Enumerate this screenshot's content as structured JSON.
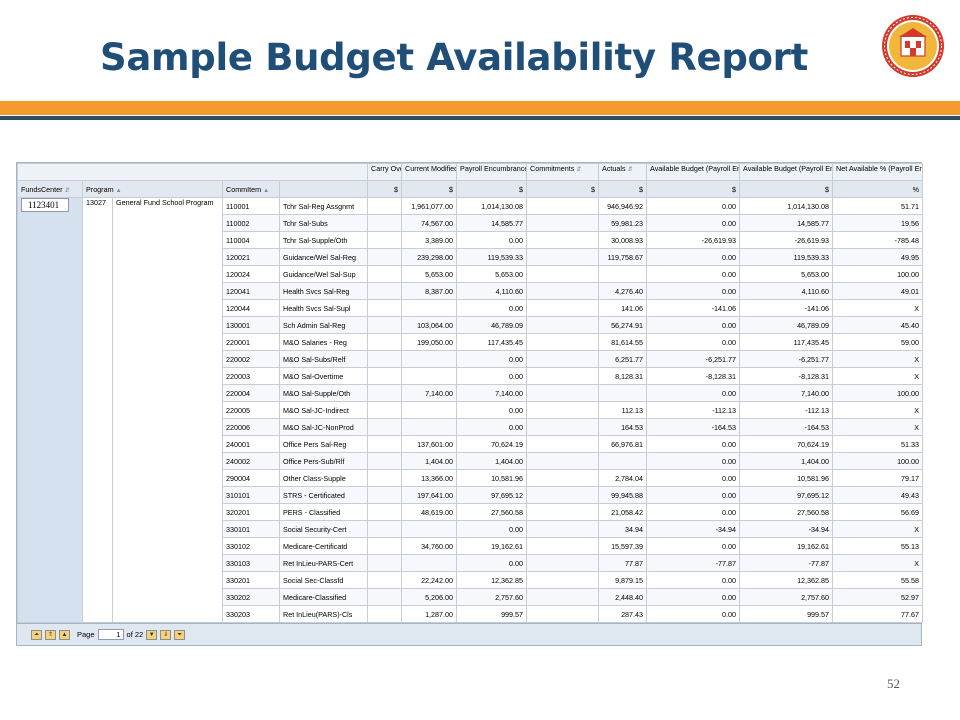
{
  "slide": {
    "title": "Sample Budget Availability Report",
    "page_number": "52"
  },
  "report": {
    "columns": {
      "carry_over": "Carry Over",
      "current_modified_budget": "Current Modified Budget",
      "payroll_encumbrances": "Payroll Encumbrances",
      "commitments": "Commitments",
      "actuals": "Actuals",
      "available_deducted": "Available Budget (Payroll Encumbrance Deducted)",
      "available_not_deducted": "Available Budget (Payroll Encumbrance Not Deducted)",
      "net_available": "Net Available % (Payroll Encumbrance Not Deducted)"
    },
    "dims": {
      "funds_center": "FundsCenter",
      "program": "Program",
      "commitment_item": "CommItem"
    },
    "units": {
      "dollar": "$",
      "percent": "%"
    },
    "funds_center_value": "1123401",
    "program_code": "13027",
    "program_name": "General Fund School Program",
    "rows": [
      {
        "item": "110001",
        "desc": "Tchr Sal-Reg Assgnmt",
        "carry": "",
        "cmb": "1,961,077.00",
        "payroll": "1,014,130.08",
        "commit": "",
        "actuals": "946,946.92",
        "avail_d": "0.00",
        "avail_nd": "1,014,130.08",
        "net": "51.71"
      },
      {
        "item": "110002",
        "desc": "Tchr Sal-Subs",
        "carry": "",
        "cmb": "74,567.00",
        "payroll": "14,585.77",
        "commit": "",
        "actuals": "59,981.23",
        "avail_d": "0.00",
        "avail_nd": "14,585.77",
        "net": "19.56"
      },
      {
        "item": "110004",
        "desc": "Tchr Sal-Supple/Oth",
        "carry": "",
        "cmb": "3,389.00",
        "payroll": "0.00",
        "commit": "",
        "actuals": "30,008.93",
        "avail_d": "-26,619.93",
        "avail_nd": "-26,619.93",
        "net": "-785.48"
      },
      {
        "item": "120021",
        "desc": "Guidance/Wel Sal-Reg",
        "carry": "",
        "cmb": "239,298.00",
        "payroll": "119,539.33",
        "commit": "",
        "actuals": "119,758.67",
        "avail_d": "0.00",
        "avail_nd": "119,539.33",
        "net": "49.95"
      },
      {
        "item": "120024",
        "desc": "Guidance/Wel Sal-Sup",
        "carry": "",
        "cmb": "5,653.00",
        "payroll": "5,653.00",
        "commit": "",
        "actuals": "",
        "avail_d": "0.00",
        "avail_nd": "5,653.00",
        "net": "100.00"
      },
      {
        "item": "120041",
        "desc": "Health Svcs Sal-Reg",
        "carry": "",
        "cmb": "8,387.00",
        "payroll": "4,110.60",
        "commit": "",
        "actuals": "4,276.40",
        "avail_d": "0.00",
        "avail_nd": "4,110.60",
        "net": "49.01"
      },
      {
        "item": "120044",
        "desc": "Health Svcs Sal-Supl",
        "carry": "",
        "cmb": "",
        "payroll": "0.00",
        "commit": "",
        "actuals": "141.06",
        "avail_d": "-141.06",
        "avail_nd": "-141.06",
        "net": "X"
      },
      {
        "item": "130001",
        "desc": "Sch Admin Sal-Reg",
        "carry": "",
        "cmb": "103,064.00",
        "payroll": "46,789.09",
        "commit": "",
        "actuals": "56,274.91",
        "avail_d": "0.00",
        "avail_nd": "46,789.09",
        "net": "45.40"
      },
      {
        "item": "220001",
        "desc": "M&O Salaries - Reg",
        "carry": "",
        "cmb": "199,050.00",
        "payroll": "117,435.45",
        "commit": "",
        "actuals": "81,614.55",
        "avail_d": "0.00",
        "avail_nd": "117,435.45",
        "net": "59.00"
      },
      {
        "item": "220002",
        "desc": "M&O Sal-Subs/Relf",
        "carry": "",
        "cmb": "",
        "payroll": "0.00",
        "commit": "",
        "actuals": "6,251.77",
        "avail_d": "-6,251.77",
        "avail_nd": "-6,251.77",
        "net": "X"
      },
      {
        "item": "220003",
        "desc": "M&O Sal-Overtime",
        "carry": "",
        "cmb": "",
        "payroll": "0.00",
        "commit": "",
        "actuals": "8,128.31",
        "avail_d": "-8,128.31",
        "avail_nd": "-8,128.31",
        "net": "X"
      },
      {
        "item": "220004",
        "desc": "M&O Sal-Supple/Oth",
        "carry": "",
        "cmb": "7,140.00",
        "payroll": "7,140.00",
        "commit": "",
        "actuals": "",
        "avail_d": "0.00",
        "avail_nd": "7,140.00",
        "net": "100.00"
      },
      {
        "item": "220005",
        "desc": "M&O Sal-JC-Indirect",
        "carry": "",
        "cmb": "",
        "payroll": "0.00",
        "commit": "",
        "actuals": "112.13",
        "avail_d": "-112.13",
        "avail_nd": "-112.13",
        "net": "X"
      },
      {
        "item": "220006",
        "desc": "M&O Sal-JC-NonProd",
        "carry": "",
        "cmb": "",
        "payroll": "0.00",
        "commit": "",
        "actuals": "164.53",
        "avail_d": "-164.53",
        "avail_nd": "-164.53",
        "net": "X"
      },
      {
        "item": "240001",
        "desc": "Office Pers Sal-Reg",
        "carry": "",
        "cmb": "137,601.00",
        "payroll": "70,624.19",
        "commit": "",
        "actuals": "66,976.81",
        "avail_d": "0.00",
        "avail_nd": "70,624.19",
        "net": "51.33"
      },
      {
        "item": "240002",
        "desc": "Office Pers-Sub/Rlf",
        "carry": "",
        "cmb": "1,404.00",
        "payroll": "1,404.00",
        "commit": "",
        "actuals": "",
        "avail_d": "0.00",
        "avail_nd": "1,404.00",
        "net": "100.00"
      },
      {
        "item": "290004",
        "desc": "Other Class-Supple",
        "carry": "",
        "cmb": "13,366.00",
        "payroll": "10,581.96",
        "commit": "",
        "actuals": "2,784.04",
        "avail_d": "0.00",
        "avail_nd": "10,581.96",
        "net": "79.17"
      },
      {
        "item": "310101",
        "desc": "STRS - Certificated",
        "carry": "",
        "cmb": "197,641.00",
        "payroll": "97,695.12",
        "commit": "",
        "actuals": "99,945.88",
        "avail_d": "0.00",
        "avail_nd": "97,695.12",
        "net": "49.43"
      },
      {
        "item": "320201",
        "desc": "PERS - Classified",
        "carry": "",
        "cmb": "48,619.00",
        "payroll": "27,560.58",
        "commit": "",
        "actuals": "21,058.42",
        "avail_d": "0.00",
        "avail_nd": "27,560.58",
        "net": "56.69"
      },
      {
        "item": "330101",
        "desc": "Social Security-Cert",
        "carry": "",
        "cmb": "",
        "payroll": "0.00",
        "commit": "",
        "actuals": "34.94",
        "avail_d": "-34.94",
        "avail_nd": "-34.94",
        "net": "X"
      },
      {
        "item": "330102",
        "desc": "Medicare-Certificatd",
        "carry": "",
        "cmb": "34,760.00",
        "payroll": "19,162.61",
        "commit": "",
        "actuals": "15,597.39",
        "avail_d": "0.00",
        "avail_nd": "19,162.61",
        "net": "55.13"
      },
      {
        "item": "330103",
        "desc": "Ret InLieu-PARS-Cert",
        "carry": "",
        "cmb": "",
        "payroll": "0.00",
        "commit": "",
        "actuals": "77.87",
        "avail_d": "-77.87",
        "avail_nd": "-77.87",
        "net": "X"
      },
      {
        "item": "330201",
        "desc": "Social Sec-Classfd",
        "carry": "",
        "cmb": "22,242.00",
        "payroll": "12,362.85",
        "commit": "",
        "actuals": "9,879.15",
        "avail_d": "0.00",
        "avail_nd": "12,362.85",
        "net": "55.58"
      },
      {
        "item": "330202",
        "desc": "Medicare-Classified",
        "carry": "",
        "cmb": "5,206.00",
        "payroll": "2,757.60",
        "commit": "",
        "actuals": "2,448.40",
        "avail_d": "0.00",
        "avail_nd": "2,757.60",
        "net": "52.97"
      },
      {
        "item": "330203",
        "desc": "Ret InLieu(PARS)-Cls",
        "carry": "",
        "cmb": "1,287.00",
        "payroll": "999.57",
        "commit": "",
        "actuals": "287.43",
        "avail_d": "0.00",
        "avail_nd": "999.57",
        "net": "77.67"
      }
    ]
  },
  "pager": {
    "page_label": "Page",
    "current_page": "1",
    "of_label": "of 22"
  }
}
